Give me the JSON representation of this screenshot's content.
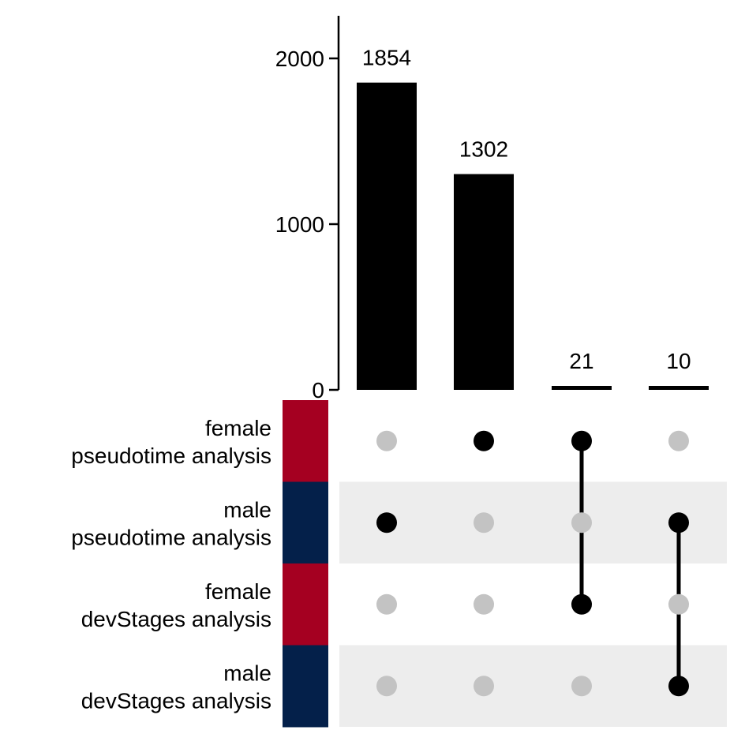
{
  "chart_data": {
    "type": "bar",
    "subtype": "upset",
    "categories": [
      "1854",
      "1302",
      "21",
      "10"
    ],
    "values": [
      1854,
      1302,
      21,
      10
    ],
    "value_labels": [
      "1854",
      "1302",
      "21",
      "10"
    ],
    "ylim": [
      0,
      2250
    ],
    "yticks": [
      0,
      1000,
      2000
    ],
    "ytick_labels": [
      "0",
      "1000",
      "2000"
    ],
    "title": "",
    "xlabel": "",
    "ylabel": "",
    "sets": [
      {
        "line1": "female",
        "line2": "pseudotime analysis",
        "color": "#A50021"
      },
      {
        "line1": "male",
        "line2": "pseudotime analysis",
        "color": "#04204A"
      },
      {
        "line1": "female",
        "line2": "devStages analysis",
        "color": "#A50021"
      },
      {
        "line1": "male",
        "line2": "devStages analysis",
        "color": "#04204A"
      }
    ],
    "membership": [
      [
        1
      ],
      [
        0
      ],
      [
        0,
        2
      ],
      [
        1,
        3
      ]
    ],
    "colors": {
      "bar": "#000000",
      "active_dot": "#000000",
      "inactive_dot": "#C3C3C3",
      "stripe": "#EDEDED"
    }
  }
}
